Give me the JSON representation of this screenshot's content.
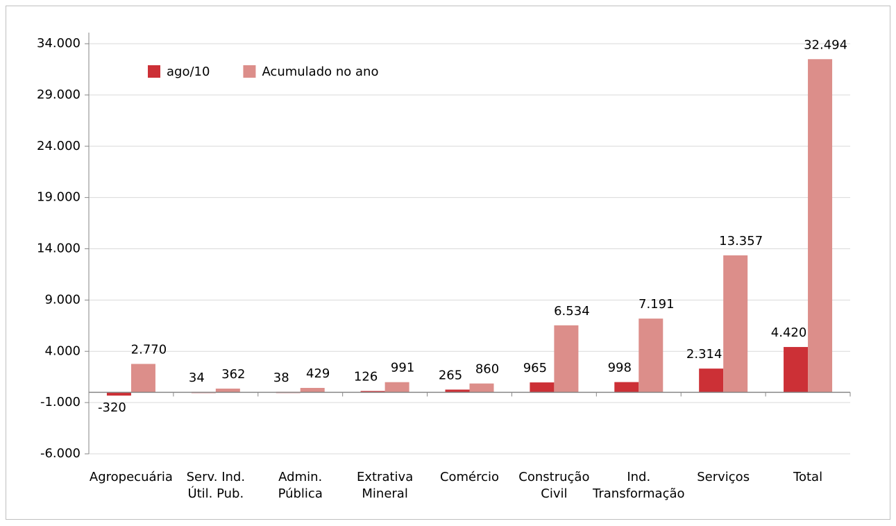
{
  "chart_data": {
    "type": "bar",
    "categories": [
      "Agropecuária",
      "Serv. Ind.\nÚtil. Pub.",
      "Admin.\nPública",
      "Extrativa\nMineral",
      "Comércio",
      "Construção\nCivil",
      "Ind.\nTransformação",
      "Serviços",
      "Total"
    ],
    "series": [
      {
        "name": "ago/10",
        "color": "#cc3036",
        "values": [
          -320,
          34,
          38,
          126,
          265,
          965,
          998,
          2314,
          4420
        ],
        "value_labels": [
          "-320",
          "34",
          "38",
          "126",
          "265",
          "965",
          "998",
          "2.314",
          "4.420"
        ]
      },
      {
        "name": "Acumulado no ano",
        "color": "#dc8e8a",
        "values": [
          2770,
          362,
          429,
          991,
          860,
          6534,
          7191,
          13357,
          32494
        ],
        "value_labels": [
          "2.770",
          "362",
          "429",
          "991",
          "860",
          "6.534",
          "7.191",
          "13.357",
          "32.494"
        ]
      }
    ],
    "ylim": [
      -6000,
      34000
    ],
    "yticks": [
      {
        "value": -6000,
        "label": "-6.000"
      },
      {
        "value": -1000,
        "label": "-1.000"
      },
      {
        "value": 4000,
        "label": "4.000"
      },
      {
        "value": 9000,
        "label": "9.000"
      },
      {
        "value": 14000,
        "label": "14.000"
      },
      {
        "value": 19000,
        "label": "19.000"
      },
      {
        "value": 24000,
        "label": "24.000"
      },
      {
        "value": 29000,
        "label": "29.000"
      },
      {
        "value": 34000,
        "label": "34.000"
      }
    ],
    "grid": true,
    "legend": "upper left"
  }
}
